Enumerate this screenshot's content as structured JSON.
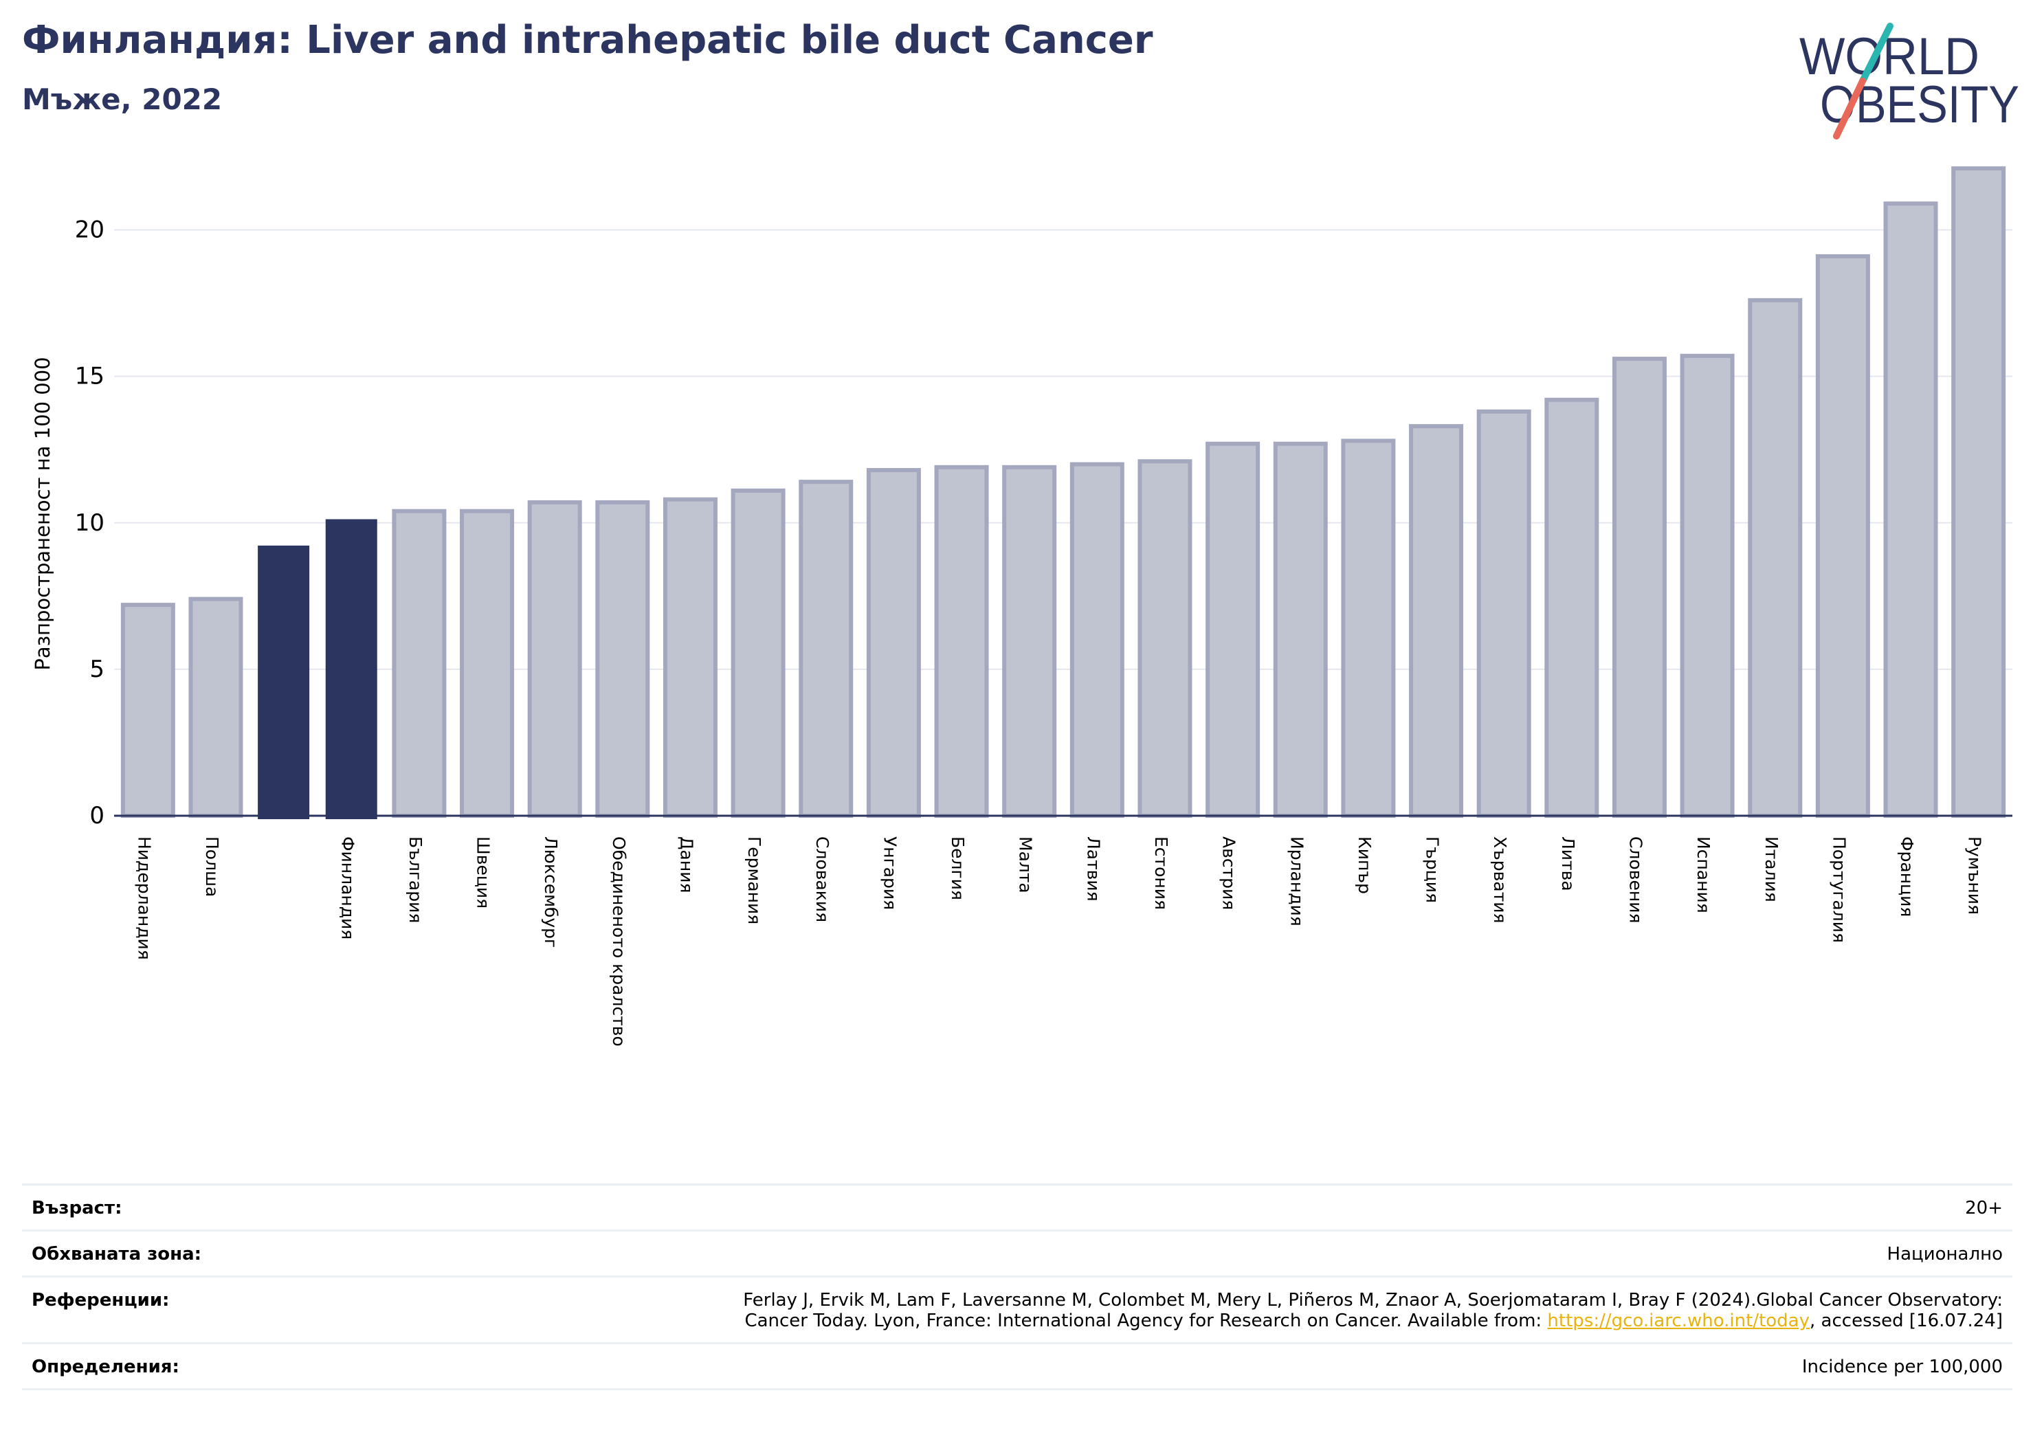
{
  "header": {
    "title": "Финландия: Liver and intrahepatic bile duct Cancer",
    "subtitle": "Мъже, 2022"
  },
  "logo": {
    "line1": "WORLD",
    "line2": "OBESITY"
  },
  "colors": {
    "highlight": "#2b3560",
    "bar_fill": "#c0c3d0",
    "bar_stroke": "#a3a8bf",
    "grid": "#e6e8f0",
    "logo_slash_top": "#2bb5b0",
    "logo_slash_bottom": "#e8685a"
  },
  "chart_data": {
    "type": "bar",
    "ylabel": "Разпространеност  на 100 000",
    "xlabel": "",
    "ylim": [
      0,
      22.5
    ],
    "yticks": [
      0,
      5,
      10,
      15,
      20
    ],
    "grid": true,
    "categories": [
      "Нидерландия",
      "Полша",
      "",
      "Финландия",
      "България",
      "Швеция",
      "Люксембург",
      "Обединеното кралство",
      "Дания",
      "Германия",
      "Словакия",
      "Унгария",
      "Белгия",
      "Малта",
      "Латвия",
      "Естония",
      "Австрия",
      "Ирландия",
      "Кипър",
      "Гърция",
      "Хърватия",
      "Литва",
      "Словения",
      "Испания",
      "Италия",
      "Португалия",
      "Франция",
      "Румъния"
    ],
    "values": [
      7.2,
      7.4,
      9.2,
      10.1,
      10.4,
      10.4,
      10.7,
      10.7,
      10.8,
      11.1,
      11.4,
      11.8,
      11.9,
      11.9,
      12.0,
      12.1,
      12.7,
      12.7,
      12.8,
      13.3,
      13.8,
      14.2,
      15.6,
      15.7,
      17.6,
      19.1,
      20.9,
      22.1
    ],
    "highlighted": [
      2,
      3
    ]
  },
  "info": {
    "age_label": "Възраст:",
    "age_value": "20+",
    "area_label": "Обхваната зона:",
    "area_value": "Национално",
    "ref_label": "Референции:",
    "ref_text1": "Ferlay J, Ervik M, Lam F, Laversanne M, Colombet M, Mery L, Piñeros M, Znaor A, Soerjomataram I, Bray F (2024).Global Cancer Observatory:",
    "ref_text2_pre": "Cancer Today. Lyon, France: International Agency for Research on Cancer. Available from: ",
    "ref_link": "https://gco.iarc.who.int/today",
    "ref_text2_post": ", accessed [16.07.24]",
    "def_label": "Определения:",
    "def_value": "Incidence per 100,000"
  }
}
